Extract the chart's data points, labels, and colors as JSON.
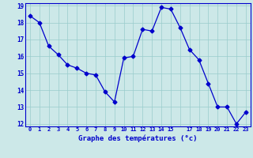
{
  "x": [
    0,
    1,
    2,
    3,
    4,
    5,
    6,
    7,
    8,
    9,
    10,
    11,
    12,
    13,
    14,
    15,
    16,
    17,
    18,
    19,
    20,
    21,
    22,
    23
  ],
  "y": [
    18.4,
    18.0,
    16.6,
    16.1,
    15.5,
    15.3,
    15.0,
    14.9,
    13.9,
    13.3,
    15.9,
    16.0,
    17.6,
    17.5,
    18.9,
    18.8,
    17.7,
    16.4,
    15.8,
    14.4,
    13.0,
    13.0,
    12.0,
    12.7
  ],
  "line_color": "#0000cc",
  "marker": "D",
  "marker_size": 2.5,
  "bg_color": "#cce8e8",
  "grid_color": "#99cccc",
  "xlabel": "Graphe des températures (°c)",
  "xlabel_color": "#0000cc",
  "tick_color": "#0000cc",
  "ylim": [
    12,
    19
  ],
  "xlim": [
    -0.5,
    23.5
  ],
  "yticks": [
    12,
    13,
    14,
    15,
    16,
    17,
    18,
    19
  ],
  "xticks": [
    0,
    1,
    2,
    3,
    4,
    5,
    6,
    7,
    8,
    9,
    10,
    11,
    12,
    13,
    14,
    15,
    16,
    17,
    18,
    19,
    20,
    21,
    22,
    23
  ],
  "xtick_labels": [
    "0",
    "1",
    "2",
    "3",
    "4",
    "5",
    "6",
    "7",
    "8",
    "9",
    "10",
    "11",
    "12",
    "13",
    "14",
    "15",
    "",
    "17",
    "18",
    "19",
    "20",
    "21",
    "22",
    "23"
  ],
  "fig_bg": "#cce8e8",
  "spine_color": "#0000cc"
}
